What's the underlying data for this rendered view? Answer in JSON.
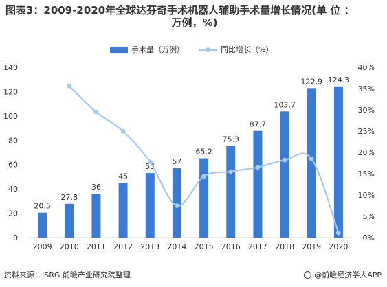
{
  "title": {
    "line1": "图表3：2009-2020年全球达芬奇手术机器人辅助手术量增长情况(单 位 ：",
    "line2": "万例，%)"
  },
  "chart_data": {
    "type": "bar",
    "categories": [
      "2009",
      "2010",
      "2011",
      "2012",
      "2013",
      "2014",
      "2015",
      "2016",
      "2017",
      "2018",
      "2019",
      "2020"
    ],
    "series": [
      {
        "name": "手术量（万例）",
        "type": "bar",
        "axis": "left",
        "values": [
          20.5,
          27.8,
          36,
          45,
          53,
          57,
          65.2,
          75.3,
          87.7,
          103.7,
          122.9,
          124.3
        ],
        "labels": [
          "20.5",
          "27.8",
          "36",
          "45",
          "53",
          "57",
          "65.2",
          "75.3",
          "87.7",
          "103.7",
          "122.9",
          "124.3"
        ]
      },
      {
        "name": "同比增长（%）",
        "type": "line",
        "axis": "right",
        "values": [
          null,
          35.6,
          29.5,
          25,
          17.8,
          7.5,
          14.4,
          15.5,
          16.5,
          18.2,
          18.5,
          1.1
        ]
      }
    ],
    "y_left": {
      "min": 0,
      "max": 140,
      "step": 20,
      "ticks": [
        "0",
        "20",
        "40",
        "60",
        "80",
        "100",
        "120",
        "140"
      ]
    },
    "y_right": {
      "min": 0,
      "max": 40,
      "step": 5,
      "ticks": [
        "0%",
        "5%",
        "10%",
        "15%",
        "20%",
        "25%",
        "30%",
        "35%",
        "40%"
      ]
    },
    "grid": false,
    "legend_position": "top-center",
    "colors": {
      "bar": "#3a7bd5",
      "line": "#a4c8ee",
      "axis_text": "#333333"
    }
  },
  "footer": {
    "source": "资料来源：ISRG 前瞻产业研究院整理",
    "brand": "@前瞻经济学人APP"
  },
  "icons": {
    "brand": "brand-logo-icon"
  }
}
